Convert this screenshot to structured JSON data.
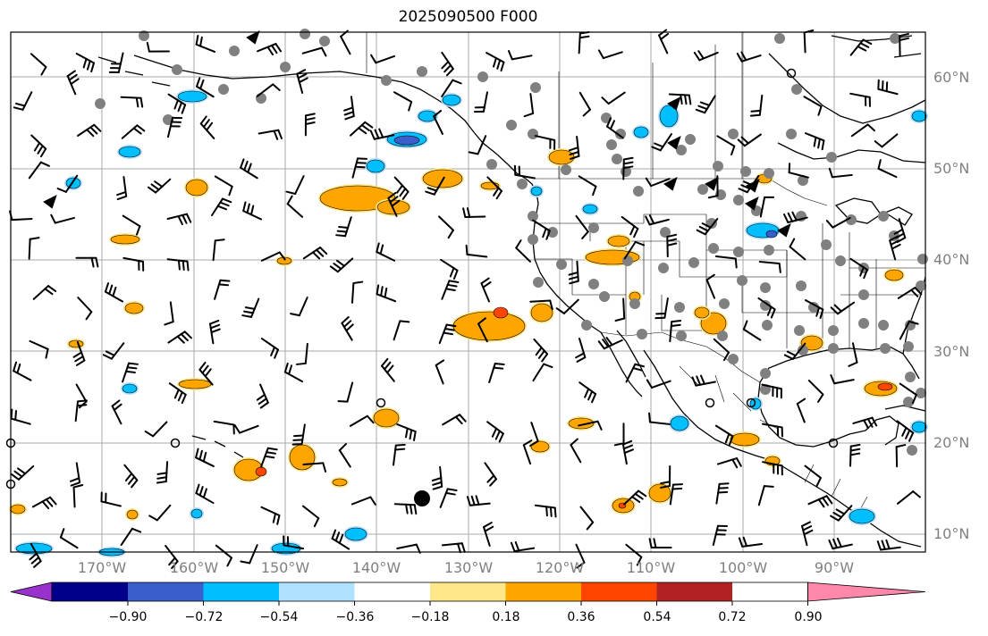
{
  "title": "2025090500 F000",
  "lat_labels": [
    "60°N",
    "50°N",
    "40°N",
    "30°N",
    "20°N",
    "10°N"
  ],
  "lon_labels": [
    "170°W",
    "160°W",
    "150°W",
    "140°W",
    "130°W",
    "120°W",
    "110°W",
    "100°W",
    "90°W"
  ],
  "colorbar": {
    "colors": [
      "#9932cc",
      "#00008b",
      "#3a5fcd",
      "#00bfff",
      "#b0e2ff",
      "#ffffff",
      "#ffe78a",
      "#ffa500",
      "#ff4500",
      "#b22222",
      "#ff87aa"
    ],
    "labels": [
      "−0.90",
      "−0.72",
      "−0.54",
      "−0.36",
      "−0.18",
      "0.18",
      "0.36",
      "0.54",
      "0.72",
      "0.90"
    ]
  },
  "colors": {
    "positive_light": "#ffe78a",
    "positive": "#ffa500",
    "positive_strong": "#ff4500",
    "negative_light": "#b0e2ff",
    "negative": "#00bfff",
    "negative_strong": "#3a5fcd",
    "station": "#808080",
    "grid": "#aaaaaa"
  }
}
